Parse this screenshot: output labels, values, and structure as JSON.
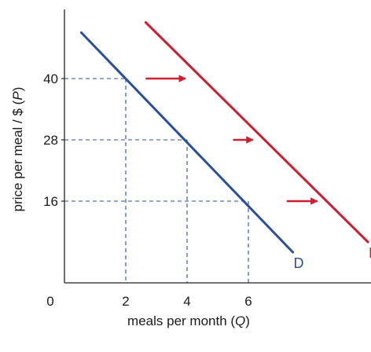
{
  "chart_data": {
    "type": "line",
    "xlabel": {
      "text": "meals per month (",
      "var": "Q",
      "close": ")"
    },
    "ylabel": {
      "text": "price per meal / $ (",
      "var": "P",
      "close": ")"
    },
    "origin_label": "0",
    "x_ticks": [
      "2",
      "4",
      "6"
    ],
    "y_ticks": [
      "40",
      "28",
      "16"
    ],
    "xlim": [
      0,
      10
    ],
    "ylim": [
      0,
      55
    ],
    "grid": false,
    "colors": {
      "original": "#2a4f9a",
      "shifted": "#cc1f30",
      "guides": "#2a4f9a",
      "arrows": "#cc1f30",
      "axes": "#222222"
    },
    "series": [
      {
        "name": "D",
        "x": [
          0.55,
          7.45
        ],
        "y": [
          49,
          6
        ]
      },
      {
        "name": "D",
        "x": [
          2.65,
          9.9
        ],
        "y": [
          51,
          8
        ]
      }
    ],
    "reference_points": [
      {
        "x": 2,
        "y": 40
      },
      {
        "x": 4,
        "y": 28
      },
      {
        "x": 6,
        "y": 16
      }
    ],
    "shift_arrows": [
      {
        "y": 40,
        "x_from": 2.65,
        "x_to": 3.95
      },
      {
        "y": 28,
        "x_from": 5.5,
        "x_to": 6.15
      },
      {
        "y": 16,
        "x_from": 7.25,
        "x_to": 8.25
      }
    ]
  }
}
